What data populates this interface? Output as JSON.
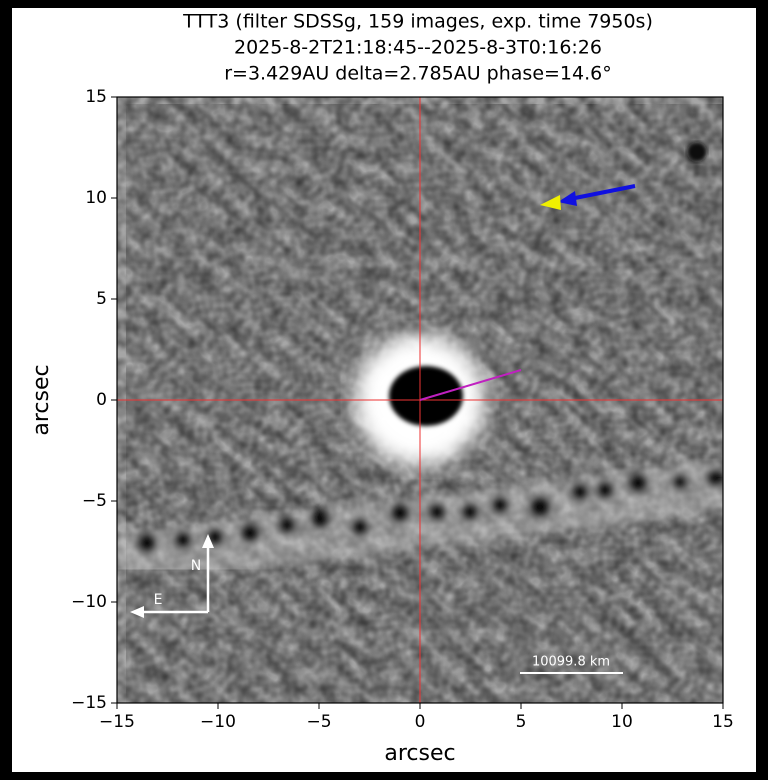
{
  "chart_data": {
    "type": "image",
    "title": [
      "TTT3 (filter SDSSg, 159 images, exp. time 7950s)",
      "2025-8-2T21:18:45--2025-8-3T0:16:26",
      "r=3.429AU delta=2.785AU phase=14.6°"
    ],
    "xlabel": "arcsec",
    "ylabel": "arcsec",
    "xlim": [
      -15,
      15
    ],
    "ylim": [
      -15,
      15
    ],
    "xticks": [
      {
        "value": -15,
        "label": "−15"
      },
      {
        "value": -10,
        "label": "−10"
      },
      {
        "value": -5,
        "label": "−5"
      },
      0,
      5,
      10,
      15
    ],
    "yticks": [
      {
        "value": -15,
        "label": "−15"
      },
      {
        "value": -10,
        "label": "−10"
      },
      {
        "value": -5,
        "label": "−5"
      },
      0,
      5,
      10,
      15
    ],
    "annotations": {
      "scale_bar": "10099.8 km",
      "north": "N",
      "east": "E"
    }
  }
}
